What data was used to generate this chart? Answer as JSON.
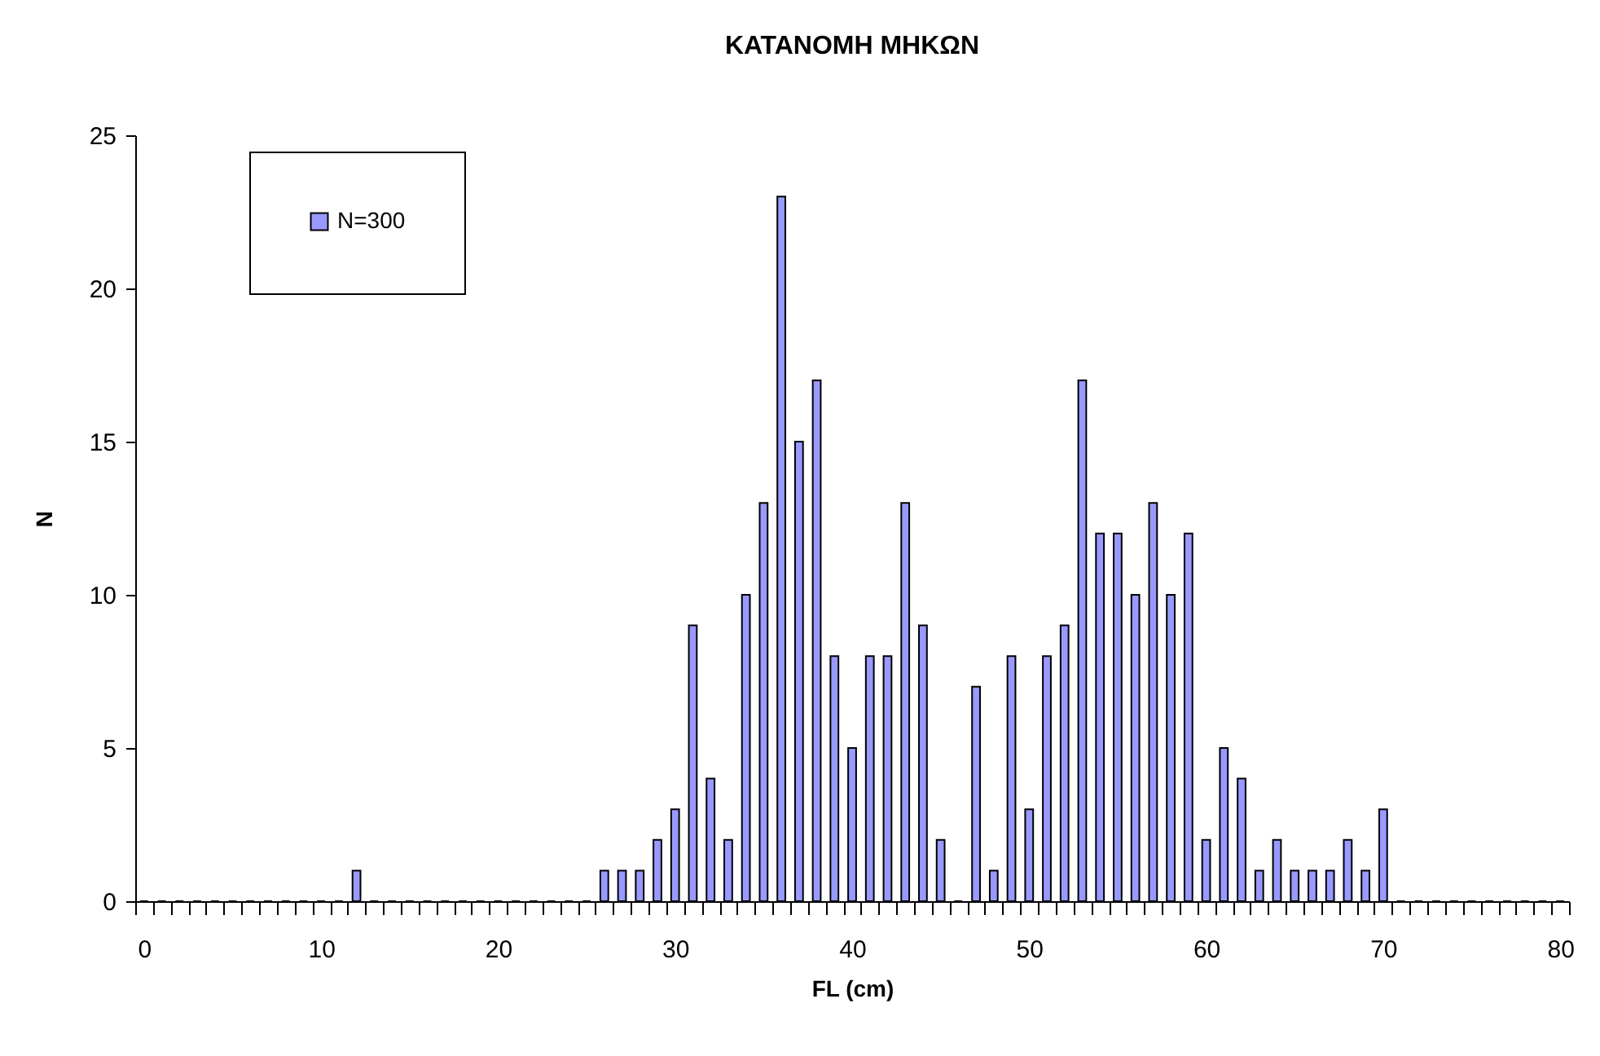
{
  "chart_data": {
    "type": "bar",
    "title": "ΚΑΤΑΝΟΜΗ ΜΗΚΩΝ",
    "xlabel": "FL (cm)",
    "ylabel": "N",
    "categories": [
      "0",
      null,
      null,
      null,
      null,
      null,
      null,
      null,
      null,
      null,
      "10",
      null,
      null,
      null,
      null,
      null,
      null,
      null,
      null,
      null,
      "20",
      null,
      null,
      null,
      null,
      null,
      null,
      null,
      null,
      null,
      "30",
      null,
      null,
      null,
      null,
      null,
      null,
      null,
      null,
      null,
      "40",
      null,
      null,
      null,
      null,
      null,
      null,
      null,
      null,
      null,
      "50",
      null,
      null,
      null,
      null,
      null,
      null,
      null,
      null,
      null,
      "60",
      null,
      null,
      null,
      null,
      null,
      null,
      null,
      null,
      null,
      "70",
      null,
      null,
      null,
      null,
      null,
      null,
      null,
      null,
      null,
      "80"
    ],
    "series": [
      {
        "name": "N=300",
        "color": "#9999ff",
        "values": [
          0,
          0,
          0,
          0,
          0,
          0,
          0,
          0,
          0,
          0,
          0,
          0,
          1,
          0,
          0,
          0,
          0,
          0,
          0,
          0,
          0,
          0,
          0,
          0,
          0,
          0,
          1,
          1,
          1,
          2,
          3,
          9,
          4,
          2,
          10,
          13,
          23,
          15,
          17,
          8,
          5,
          8,
          8,
          13,
          9,
          2,
          0,
          7,
          1,
          8,
          3,
          8,
          9,
          17,
          12,
          12,
          10,
          13,
          10,
          12,
          2,
          5,
          4,
          1,
          2,
          1,
          1,
          1,
          2,
          1,
          3,
          0,
          0,
          0,
          0,
          0,
          0,
          0,
          0,
          0,
          0
        ]
      }
    ],
    "ylim": [
      0,
      25
    ],
    "yticks": [
      0,
      5,
      10,
      15,
      20,
      25
    ],
    "grid": false,
    "legend": "top left"
  }
}
